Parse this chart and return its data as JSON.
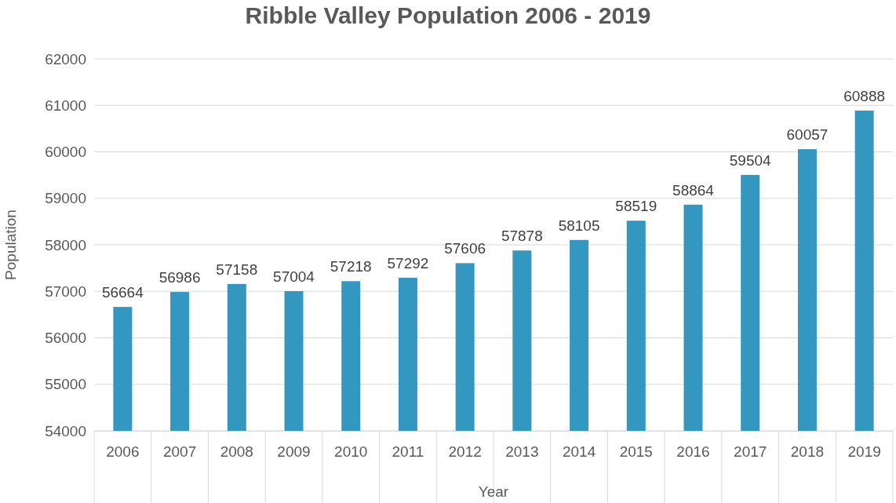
{
  "chart_data": {
    "type": "bar",
    "title": "Ribble Valley Population 2006 - 2019",
    "xlabel": "Year",
    "ylabel": "Population",
    "categories": [
      "2006",
      "2007",
      "2008",
      "2009",
      "2010",
      "2011",
      "2012",
      "2013",
      "2014",
      "2015",
      "2016",
      "2017",
      "2018",
      "2019"
    ],
    "values": [
      56664,
      56986,
      57158,
      57004,
      57218,
      57292,
      57606,
      57878,
      58105,
      58519,
      58864,
      59504,
      60057,
      60888
    ],
    "color": "#3497bf",
    "ylim": [
      54000,
      62000
    ],
    "yticks": [
      54000,
      55000,
      56000,
      57000,
      58000,
      59000,
      60000,
      61000,
      62000
    ],
    "grid": "y",
    "data_labels": true
  }
}
